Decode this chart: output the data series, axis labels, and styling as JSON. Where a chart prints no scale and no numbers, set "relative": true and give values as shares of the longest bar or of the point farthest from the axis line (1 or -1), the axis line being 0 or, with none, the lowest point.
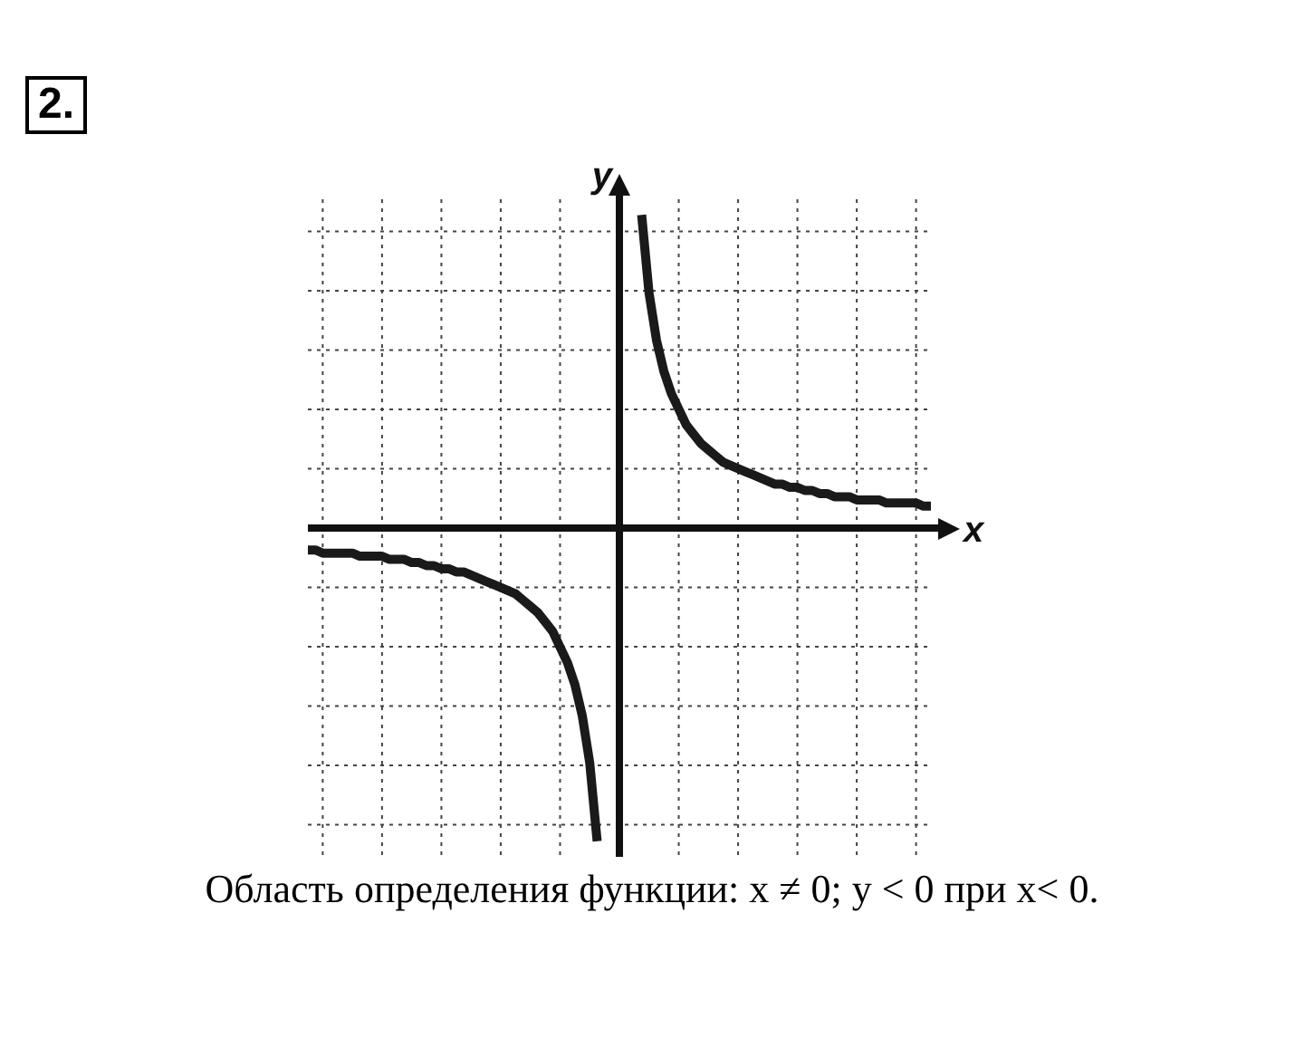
{
  "chart_data": {
    "type": "line",
    "title": "2.",
    "xlabel": "x",
    "ylabel": "y",
    "relative": true,
    "grid": true,
    "legend": false,
    "annotations": [
      "Область определения функции: x ≠ 0;  y < 0 при x< 0."
    ],
    "categories": [
      null,
      null,
      null,
      null,
      null,
      null,
      null,
      null,
      null,
      null,
      null,
      null,
      null,
      null,
      null,
      null,
      null,
      null,
      null,
      null,
      null,
      null,
      null,
      null,
      null,
      null,
      null,
      null,
      null,
      null,
      null,
      null,
      null,
      null,
      null,
      null,
      null,
      null,
      null,
      null,
      null,
      null,
      null,
      null,
      null,
      null,
      null,
      null,
      null,
      null,
      null,
      null,
      null,
      null,
      null,
      null,
      null,
      null,
      null,
      null,
      null,
      null,
      null,
      null,
      null,
      null,
      null,
      null,
      null,
      null,
      null,
      null,
      null,
      null,
      null,
      null,
      null,
      null,
      null,
      null,
      null,
      null,
      null,
      null,
      null
    ],
    "series": [
      {
        "color": "#1a1a1a",
        "values": [
          -0.07,
          -0.07,
          -0.08,
          -0.08,
          -0.08,
          -0.08,
          -0.08,
          -0.09,
          -0.09,
          -0.09,
          -0.09,
          -0.1,
          -0.1,
          -0.1,
          -0.11,
          -0.11,
          -0.12,
          -0.12,
          -0.13,
          -0.13,
          -0.14,
          -0.14,
          -0.15,
          -0.16,
          -0.17,
          -0.18,
          -0.19,
          -0.2,
          -0.21,
          -0.23,
          -0.25,
          -0.27,
          -0.3,
          -0.33,
          -0.38,
          -0.43,
          -0.5,
          -0.6,
          -0.75,
          -1,
          null,
          null,
          null,
          null,
          null,
          null,
          null,
          null,
          null,
          null,
          null,
          null,
          null,
          null,
          null,
          null,
          null,
          null,
          null,
          null,
          null,
          null,
          null,
          null,
          null,
          null,
          null,
          null,
          null,
          null,
          null,
          null,
          null,
          null,
          null,
          null,
          null,
          null,
          null,
          null,
          null,
          null,
          null,
          null,
          null
        ]
      },
      {
        "color": "#1a1a1a",
        "values": [
          null,
          null,
          null,
          null,
          null,
          null,
          null,
          null,
          null,
          null,
          null,
          null,
          null,
          null,
          null,
          null,
          null,
          null,
          null,
          null,
          null,
          null,
          null,
          null,
          null,
          null,
          null,
          null,
          null,
          null,
          null,
          null,
          null,
          null,
          null,
          null,
          null,
          null,
          null,
          null,
          null,
          null,
          null,
          null,
          null,
          1,
          0.75,
          0.6,
          0.5,
          0.43,
          0.38,
          0.33,
          0.3,
          0.27,
          0.25,
          0.23,
          0.21,
          0.2,
          0.19,
          0.18,
          0.17,
          0.16,
          0.15,
          0.14,
          0.14,
          0.13,
          0.13,
          0.12,
          0.12,
          0.11,
          0.11,
          0.1,
          0.1,
          0.1,
          0.09,
          0.09,
          0.09,
          0.09,
          0.08,
          0.08,
          0.08,
          0.08,
          0.08,
          0.07,
          0.07
        ]
      }
    ]
  }
}
